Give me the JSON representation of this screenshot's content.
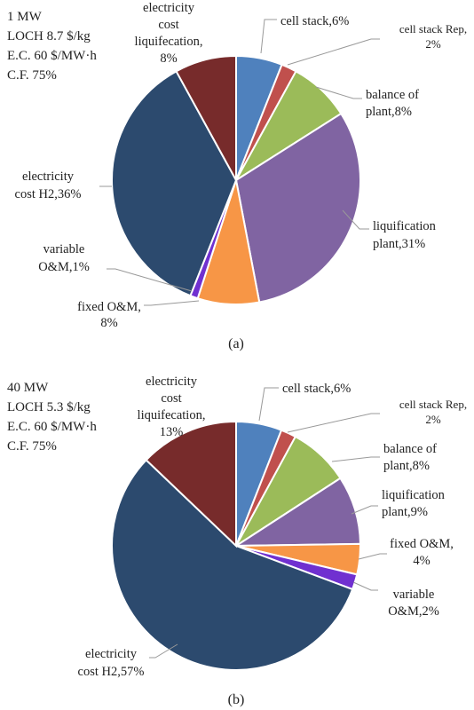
{
  "chart_data": [
    {
      "type": "pie",
      "caption": "(a)",
      "info": [
        "1 MW",
        "LOCH 8.7 $/kg",
        "E.C. 60 $/MW·h",
        "C.F. 75%"
      ],
      "slices": [
        {
          "label": [
            "cell stack,6%"
          ],
          "value": 6,
          "color": "#4f81bd"
        },
        {
          "label": [
            "cell stack Rep,",
            "2%"
          ],
          "value": 2,
          "color": "#c0504d"
        },
        {
          "label": [
            "balance of",
            "plant,8%"
          ],
          "value": 8,
          "color": "#9bbb59"
        },
        {
          "label": [
            "liquification",
            "plant,31%"
          ],
          "value": 31,
          "color": "#8064a2"
        },
        {
          "label": [
            "fixed O&M,",
            "8%"
          ],
          "value": 8,
          "color": "#f79646"
        },
        {
          "label": [
            "variable",
            "O&M,1%"
          ],
          "value": 1,
          "color": "#7030d0"
        },
        {
          "label": [
            "electricity",
            "cost H2,36%"
          ],
          "value": 36,
          "color": "#2c4a6e"
        },
        {
          "label": [
            "electricity",
            "cost",
            "liquifecation,",
            "8%"
          ],
          "value": 8,
          "color": "#772b2b"
        }
      ]
    },
    {
      "type": "pie",
      "caption": "(b)",
      "info": [
        "40 MW",
        "LOCH 5.3 $/kg",
        "E.C. 60 $/MW·h",
        "C.F. 75%"
      ],
      "slices": [
        {
          "label": [
            "cell stack,6%"
          ],
          "value": 6,
          "color": "#4f81bd"
        },
        {
          "label": [
            "cell stack Rep,",
            "2%"
          ],
          "value": 2,
          "color": "#c0504d"
        },
        {
          "label": [
            "balance of",
            "plant,8%"
          ],
          "value": 8,
          "color": "#9bbb59"
        },
        {
          "label": [
            "liquification",
            "plant,9%"
          ],
          "value": 9,
          "color": "#8064a2"
        },
        {
          "label": [
            "fixed O&M,",
            "4%"
          ],
          "value": 4,
          "color": "#f79646"
        },
        {
          "label": [
            "variable",
            "O&M,2%"
          ],
          "value": 2,
          "color": "#7030d0"
        },
        {
          "label": [
            "electricity",
            "cost H2,57%"
          ],
          "value": 57,
          "color": "#2c4a6e"
        },
        {
          "label": [
            "electricity",
            "cost",
            "liquifecation,",
            "13%"
          ],
          "value": 13,
          "color": "#772b2b"
        }
      ]
    }
  ]
}
